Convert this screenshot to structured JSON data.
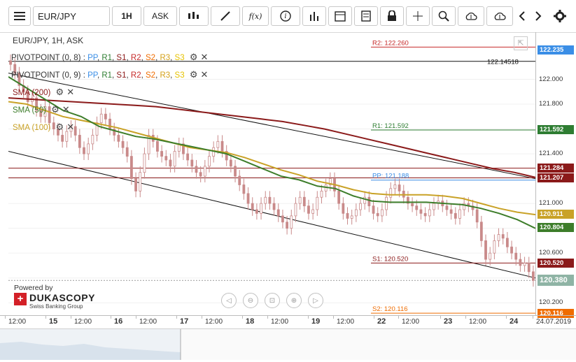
{
  "toolbar": {
    "menu_icon": "hamburger-icon",
    "symbol": "EUR/JPY",
    "timeframe": "1H",
    "side": "ASK",
    "icons": [
      "candles-icon",
      "draw-icon",
      "function-icon",
      "info-icon",
      "bars-icon",
      "calendar-icon",
      "news-icon",
      "lock-icon",
      "crosshair-icon",
      "zoom-icon",
      "upload-icon",
      "download-icon",
      "prev-icon",
      "next-icon",
      "gear-icon"
    ],
    "function_label": "f(x)",
    "info_label": "i"
  },
  "chart_title": "EUR/JPY, 1H, ASK",
  "legend": {
    "pp1": {
      "name": "PIVOTPOINT (0, 8)",
      "items": [
        {
          "t": "PP",
          "c": "#3a8ee6"
        },
        {
          "t": "R1",
          "c": "#2e7d32"
        },
        {
          "t": "S1",
          "c": "#8b1a1a"
        },
        {
          "t": "R2",
          "c": "#c62828"
        },
        {
          "t": "S2",
          "c": "#ef6c00"
        },
        {
          "t": "R3",
          "c": "#d4a017"
        },
        {
          "t": "S3",
          "c": "#e6c200"
        }
      ]
    },
    "pp2": {
      "name": "PIVOTPOINT (0, 9)",
      "items": [
        {
          "t": "PP",
          "c": "#3a8ee6"
        },
        {
          "t": "R1",
          "c": "#2e7d32"
        },
        {
          "t": "S1",
          "c": "#8b1a1a"
        },
        {
          "t": "R2",
          "c": "#c62828"
        },
        {
          "t": "S2",
          "c": "#ef6c00"
        },
        {
          "t": "R3",
          "c": "#d4a017"
        },
        {
          "t": "S3",
          "c": "#e6c200"
        }
      ]
    },
    "sma200": {
      "name": "SMA (200)",
      "color": "#8b1a1a"
    },
    "sma50": {
      "name": "SMA (50)",
      "color": "#3d7d2a"
    },
    "sma100": {
      "name": "SMA (100)",
      "color": "#c9a227"
    }
  },
  "brand": {
    "powered": "Powered by",
    "name": "DUKASCOPY",
    "sub": "Swiss Banking Group"
  },
  "chart_data": {
    "type": "candlestick",
    "ylim": [
      120.1,
      122.38
    ],
    "y_ticks": [
      120.2,
      120.4,
      120.6,
      120.8,
      121.0,
      121.2,
      121.4,
      121.6,
      121.8,
      122.0
    ],
    "y_tick_labels": [
      "120.200",
      "120.400",
      "120.600",
      "120.800",
      "121.000",
      "121.200",
      "121.400",
      "121.600",
      "121.800",
      "122.000"
    ],
    "x_labels": [
      {
        "t": "12:00",
        "day": false
      },
      {
        "t": "15",
        "day": true
      },
      {
        "t": "12:00",
        "day": false
      },
      {
        "t": "16",
        "day": true
      },
      {
        "t": "12:00",
        "day": false
      },
      {
        "t": "17",
        "day": true
      },
      {
        "t": "12:00",
        "day": false
      },
      {
        "t": "18",
        "day": true
      },
      {
        "t": "12:00",
        "day": false
      },
      {
        "t": "19",
        "day": true
      },
      {
        "t": "12:00",
        "day": false
      },
      {
        "t": "22",
        "day": true
      },
      {
        "t": "12:00",
        "day": false
      },
      {
        "t": "23",
        "day": true
      },
      {
        "t": "12:00",
        "day": false
      },
      {
        "t": "24",
        "day": true
      },
      {
        "t": "24.07.2019",
        "day": false
      }
    ],
    "pivot_lines": [
      {
        "label": "R2: 122.260",
        "value": 122.26,
        "color": "#c62828",
        "badge": "122.235",
        "badge_value": 122.235,
        "badge_color": "#3a8ee6"
      },
      {
        "label": "R1: 121.592",
        "value": 121.592,
        "color": "#2e7d32",
        "badge": "121.592",
        "badge_color": "#2e7d32"
      },
      {
        "label": "PP: 121.188",
        "value": 121.188,
        "color": "#3a8ee6",
        "badge": "",
        "badge_color": ""
      },
      {
        "label": "S1: 120.520",
        "value": 120.52,
        "color": "#8b1a1a",
        "badge": "120.520",
        "badge_color": "#8b1a1a"
      },
      {
        "label": "S2: 120.116",
        "value": 120.116,
        "color": "#ef6c00",
        "badge": "120.116",
        "badge_color": "#ef6c00"
      }
    ],
    "h_lines": [
      {
        "value": 121.284,
        "color": "#8b1a1a",
        "badge": "121.284"
      },
      {
        "value": 121.207,
        "color": "#8b1a1a",
        "badge": "121.207"
      }
    ],
    "trendline_label": "122.14518",
    "trendline_value": 122.14518,
    "current_price": 120.38,
    "current_badge": "120.380",
    "sma_badges": [
      {
        "badge": "120.911",
        "value": 120.911,
        "color": "#c9a227"
      },
      {
        "badge": "120.804",
        "value": 120.804,
        "color": "#3d7d2a"
      }
    ],
    "candles": [
      122.12,
      122.05,
      121.95,
      121.9,
      121.82,
      121.85,
      121.75,
      121.7,
      121.78,
      121.65,
      121.6,
      121.55,
      121.5,
      121.58,
      121.62,
      121.55,
      121.45,
      121.4,
      121.48,
      121.55,
      121.65,
      121.72,
      121.68,
      121.6,
      121.55,
      121.5,
      121.45,
      121.38,
      121.2,
      121.1,
      121.25,
      121.4,
      121.55,
      121.5,
      121.42,
      121.38,
      121.35,
      121.3,
      121.42,
      121.48,
      121.4,
      121.35,
      121.3,
      121.25,
      121.22,
      121.3,
      121.38,
      121.45,
      121.5,
      121.42,
      121.35,
      121.3,
      121.22,
      121.15,
      121.08,
      121.0,
      120.95,
      120.92,
      121.0,
      121.05,
      121.0,
      120.95,
      120.9,
      120.85,
      120.8,
      120.9,
      121.0,
      121.05,
      120.98,
      120.92,
      120.95,
      121.05,
      121.1,
      121.15,
      121.2,
      121.1,
      121.0,
      120.92,
      120.88,
      120.9,
      120.95,
      121.0,
      121.05,
      120.98,
      120.92,
      120.9,
      120.95,
      121.05,
      121.12,
      121.15,
      121.1,
      121.05,
      121.0,
      120.98,
      120.95,
      120.92,
      120.9,
      120.95,
      121.0,
      121.02,
      120.98,
      120.95,
      120.92,
      120.88,
      120.95,
      121.0,
      120.98,
      120.95,
      120.85,
      120.7,
      120.55,
      120.6,
      120.7,
      120.75,
      120.72,
      120.65,
      120.6,
      120.55,
      120.5,
      120.52,
      120.45,
      120.38
    ],
    "sma200": [
      121.85,
      121.84,
      121.83,
      121.82,
      121.81,
      121.8,
      121.79,
      121.78,
      121.76,
      121.74,
      121.72,
      121.7,
      121.68,
      121.66,
      121.63,
      121.6,
      121.56,
      121.52,
      121.48,
      121.44,
      121.4,
      121.36,
      121.32,
      121.28,
      121.25,
      121.21
    ],
    "sma50": [
      122.02,
      121.93,
      121.84,
      121.75,
      121.7,
      121.62,
      121.58,
      121.54,
      121.52,
      121.49,
      121.46,
      121.43,
      121.4,
      121.34,
      121.28,
      121.22,
      121.19,
      121.14,
      121.12,
      121.06,
      121.02,
      121.01,
      121.01,
      121.01,
      121.0,
      120.99,
      120.96,
      120.92,
      120.87,
      120.8
    ],
    "sma100": [
      121.82,
      121.8,
      121.75,
      121.7,
      121.67,
      121.64,
      121.61,
      121.57,
      121.53,
      121.49,
      121.45,
      121.43,
      121.41,
      121.37,
      121.32,
      121.27,
      121.23,
      121.18,
      121.15,
      121.11,
      121.08,
      121.07,
      121.07,
      121.07,
      121.06,
      121.04,
      121.0,
      120.96,
      120.93,
      120.91
    ]
  },
  "nav_buttons": [
    "first-icon",
    "zoom-out-icon",
    "fit-icon",
    "zoom-in-icon",
    "last-icon"
  ]
}
